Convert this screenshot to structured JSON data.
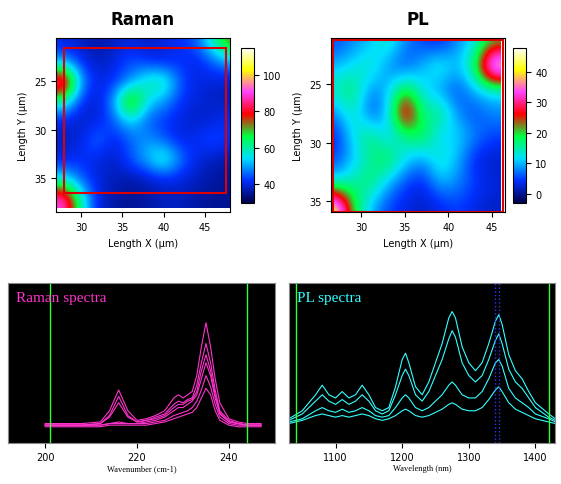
{
  "chart_data": [
    {
      "type": "heatmap",
      "title": "Raman",
      "xlabel": "Length X (µm)",
      "ylabel": "Length Y (µm)",
      "xlim": [
        27,
        48
      ],
      "xticks": [
        30,
        35,
        40,
        45
      ],
      "ylim": [
        38.5,
        20.5
      ],
      "yticks": [
        25,
        30,
        35
      ],
      "x": [
        28,
        30,
        32,
        34,
        36,
        38,
        40,
        42,
        44,
        46,
        48
      ],
      "y": [
        21,
        23,
        25,
        27,
        29,
        31,
        33,
        35,
        37
      ],
      "cells": [
        [
          40,
          38,
          36,
          38,
          40,
          38,
          40,
          42,
          45,
          60,
          75
        ],
        [
          50,
          42,
          38,
          40,
          45,
          42,
          40,
          42,
          40,
          45,
          50
        ],
        [
          95,
          50,
          40,
          42,
          48,
          60,
          62,
          45,
          40,
          40,
          38
        ],
        [
          60,
          42,
          38,
          50,
          80,
          55,
          50,
          42,
          40,
          38,
          38
        ],
        [
          40,
          38,
          40,
          45,
          55,
          45,
          42,
          40,
          38,
          40,
          42
        ],
        [
          38,
          40,
          48,
          40,
          45,
          50,
          45,
          40,
          42,
          45,
          42
        ],
        [
          40,
          42,
          40,
          38,
          45,
          52,
          62,
          48,
          40,
          38,
          36
        ],
        [
          55,
          45,
          40,
          38,
          36,
          38,
          40,
          40,
          38,
          36,
          35
        ],
        [
          92,
          60,
          40,
          36,
          35,
          36,
          38,
          38,
          36,
          35,
          35
        ]
      ],
      "colorbar": {
        "range": [
          30,
          115
        ],
        "ticks": [
          40,
          60,
          80,
          100
        ]
      },
      "scan_area": {
        "x": [
          28,
          47.5
        ],
        "y": [
          21.5,
          36.5
        ],
        "color": "#dd0000"
      }
    },
    {
      "type": "heatmap",
      "title": "PL",
      "xlabel": "Length X (µm)",
      "ylabel": "Length Y (µm)",
      "xlim": [
        26.5,
        46.5
      ],
      "xticks": [
        30,
        35,
        40,
        45
      ],
      "ylim": [
        36,
        21
      ],
      "yticks": [
        25,
        30,
        35
      ],
      "x": [
        27,
        29,
        31,
        33,
        35,
        37,
        39,
        41,
        43,
        45
      ],
      "y": [
        21.5,
        23.5,
        25.5,
        27.5,
        29.5,
        31.5,
        33.5,
        35.5
      ],
      "cells": [
        [
          5,
          8,
          10,
          15,
          8,
          5,
          3,
          8,
          12,
          20
        ],
        [
          10,
          12,
          15,
          8,
          5,
          10,
          15,
          10,
          18,
          45
        ],
        [
          15,
          18,
          8,
          10,
          20,
          12,
          8,
          5,
          10,
          12
        ],
        [
          8,
          15,
          5,
          10,
          35,
          15,
          18,
          8,
          5,
          8
        ],
        [
          3,
          12,
          18,
          10,
          15,
          20,
          10,
          12,
          8,
          5
        ],
        [
          5,
          10,
          15,
          20,
          12,
          8,
          15,
          10,
          3,
          2
        ],
        [
          12,
          15,
          18,
          10,
          5,
          3,
          10,
          8,
          5,
          3
        ],
        [
          45,
          20,
          10,
          5,
          3,
          2,
          3,
          5,
          3,
          2
        ]
      ],
      "colorbar": {
        "range": [
          -3,
          48
        ],
        "ticks": [
          0,
          10,
          20,
          30,
          40
        ]
      },
      "scan_area": {
        "x": [
          26.7,
          46.3
        ],
        "y": [
          21.2,
          36
        ],
        "color": "#dd0000"
      }
    },
    {
      "type": "line",
      "annotation": "Raman spectra",
      "xlabel": "Wavenumber (cm-1)",
      "xlim": [
        192,
        250
      ],
      "xticks": [
        200,
        220,
        240
      ],
      "ylim": [
        0,
        1
      ],
      "yticks": [],
      "tick_labels": "x",
      "color": "#ff33cc",
      "vertical_lines": [
        {
          "x": 201,
          "color": "#33ff33"
        },
        {
          "x": 244,
          "color": "#33ff33"
        }
      ],
      "x": [
        200,
        204,
        208,
        212,
        214,
        216,
        218,
        220,
        222,
        224,
        226,
        228,
        229,
        230,
        231,
        232,
        233,
        234,
        235,
        236,
        237,
        238,
        240,
        242,
        244,
        247
      ],
      "series": [
        {
          "values": [
            0.12,
            0.12,
            0.12,
            0.13,
            0.2,
            0.33,
            0.2,
            0.14,
            0.15,
            0.17,
            0.2,
            0.28,
            0.3,
            0.28,
            0.3,
            0.32,
            0.42,
            0.6,
            0.75,
            0.6,
            0.4,
            0.25,
            0.15,
            0.13,
            0.12,
            0.12
          ]
        },
        {
          "values": [
            0.11,
            0.11,
            0.11,
            0.12,
            0.16,
            0.25,
            0.16,
            0.13,
            0.14,
            0.16,
            0.18,
            0.24,
            0.26,
            0.25,
            0.27,
            0.28,
            0.36,
            0.5,
            0.62,
            0.5,
            0.33,
            0.2,
            0.14,
            0.12,
            0.11,
            0.11
          ]
        },
        {
          "values": [
            0.11,
            0.11,
            0.11,
            0.11,
            0.12,
            0.13,
            0.12,
            0.12,
            0.13,
            0.14,
            0.16,
            0.2,
            0.22,
            0.22,
            0.24,
            0.26,
            0.3,
            0.4,
            0.5,
            0.42,
            0.28,
            0.18,
            0.13,
            0.12,
            0.11,
            0.11
          ]
        },
        {
          "values": [
            0.11,
            0.11,
            0.11,
            0.11,
            0.12,
            0.12,
            0.12,
            0.12,
            0.12,
            0.13,
            0.14,
            0.17,
            0.18,
            0.19,
            0.2,
            0.22,
            0.26,
            0.33,
            0.42,
            0.35,
            0.24,
            0.16,
            0.12,
            0.11,
            0.11,
            0.11
          ]
        },
        {
          "values": [
            0.1,
            0.1,
            0.1,
            0.1,
            0.11,
            0.11,
            0.11,
            0.11,
            0.11,
            0.12,
            0.13,
            0.15,
            0.16,
            0.17,
            0.18,
            0.19,
            0.22,
            0.28,
            0.34,
            0.3,
            0.2,
            0.14,
            0.11,
            0.1,
            0.1,
            0.1
          ]
        },
        {
          "values": [
            0.11,
            0.11,
            0.11,
            0.12,
            0.17,
            0.29,
            0.17,
            0.13,
            0.14,
            0.15,
            0.17,
            0.22,
            0.24,
            0.24,
            0.26,
            0.27,
            0.32,
            0.45,
            0.55,
            0.45,
            0.3,
            0.19,
            0.13,
            0.12,
            0.11,
            0.11
          ]
        }
      ]
    },
    {
      "type": "line",
      "annotation": "PL spectra",
      "xlabel": "Wavelength (nm)",
      "xlim": [
        1030,
        1430
      ],
      "xticks": [
        1100,
        1200,
        1300,
        1400
      ],
      "ylim": [
        0,
        1
      ],
      "yticks": [],
      "tick_labels": "x",
      "color": "#33ffff",
      "vertical_lines": [
        {
          "x": 1040,
          "color": "#33ff33"
        },
        {
          "x": 1420,
          "color": "#33ff33"
        },
        {
          "x": 1340,
          "color": "#3333ff"
        },
        {
          "x": 1346,
          "color": "#3333ff"
        }
      ],
      "x": [
        1030,
        1050,
        1070,
        1080,
        1090,
        1100,
        1110,
        1120,
        1130,
        1140,
        1150,
        1160,
        1170,
        1180,
        1190,
        1200,
        1205,
        1210,
        1220,
        1230,
        1240,
        1250,
        1260,
        1270,
        1275,
        1280,
        1290,
        1300,
        1310,
        1320,
        1330,
        1340,
        1345,
        1350,
        1360,
        1370,
        1380,
        1390,
        1400,
        1420,
        1430
      ],
      "series": [
        {
          "values": [
            0.15,
            0.2,
            0.3,
            0.36,
            0.3,
            0.28,
            0.32,
            0.28,
            0.3,
            0.36,
            0.3,
            0.22,
            0.2,
            0.22,
            0.35,
            0.52,
            0.56,
            0.5,
            0.35,
            0.3,
            0.38,
            0.5,
            0.62,
            0.78,
            0.82,
            0.78,
            0.6,
            0.5,
            0.45,
            0.5,
            0.62,
            0.76,
            0.8,
            0.74,
            0.55,
            0.45,
            0.4,
            0.32,
            0.25,
            0.18,
            0.15
          ]
        },
        {
          "values": [
            0.14,
            0.18,
            0.26,
            0.3,
            0.26,
            0.24,
            0.27,
            0.24,
            0.26,
            0.3,
            0.26,
            0.2,
            0.18,
            0.2,
            0.3,
            0.42,
            0.46,
            0.42,
            0.3,
            0.26,
            0.32,
            0.42,
            0.52,
            0.65,
            0.7,
            0.66,
            0.5,
            0.42,
            0.38,
            0.42,
            0.52,
            0.64,
            0.68,
            0.62,
            0.46,
            0.38,
            0.34,
            0.28,
            0.22,
            0.16,
            0.14
          ]
        },
        {
          "values": [
            0.13,
            0.15,
            0.2,
            0.22,
            0.2,
            0.19,
            0.21,
            0.19,
            0.2,
            0.22,
            0.2,
            0.17,
            0.16,
            0.17,
            0.22,
            0.28,
            0.3,
            0.28,
            0.22,
            0.2,
            0.22,
            0.26,
            0.3,
            0.36,
            0.38,
            0.36,
            0.3,
            0.28,
            0.28,
            0.32,
            0.4,
            0.5,
            0.52,
            0.48,
            0.34,
            0.28,
            0.25,
            0.22,
            0.18,
            0.15,
            0.13
          ]
        },
        {
          "values": [
            0.12,
            0.14,
            0.17,
            0.18,
            0.17,
            0.16,
            0.17,
            0.16,
            0.17,
            0.18,
            0.17,
            0.15,
            0.14,
            0.15,
            0.17,
            0.2,
            0.21,
            0.2,
            0.17,
            0.16,
            0.17,
            0.19,
            0.21,
            0.24,
            0.25,
            0.24,
            0.21,
            0.2,
            0.2,
            0.22,
            0.27,
            0.33,
            0.35,
            0.32,
            0.25,
            0.21,
            0.19,
            0.17,
            0.15,
            0.13,
            0.12
          ]
        }
      ]
    }
  ]
}
